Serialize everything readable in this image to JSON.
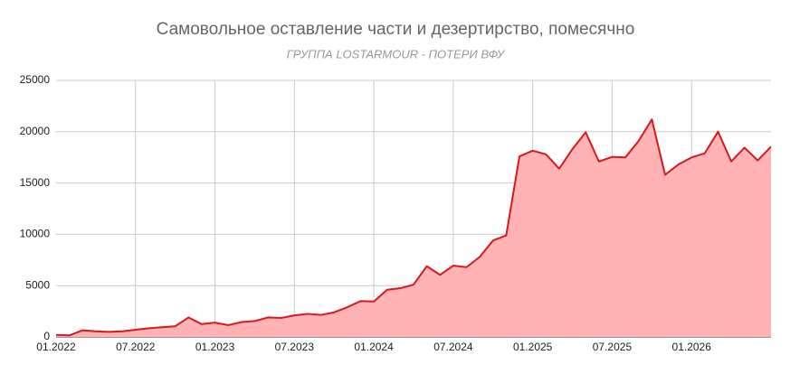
{
  "chart_data": {
    "type": "area",
    "title": "Самовольное оставление части и дезертирство, помесячно",
    "subtitle": "ГРУППА LOSTARMOUR - ПОТЕРИ ВФУ",
    "categories": [
      "01.2022",
      null,
      null,
      null,
      null,
      null,
      "07.2022",
      null,
      null,
      null,
      null,
      null,
      "01.2023",
      null,
      null,
      null,
      null,
      null,
      "07.2023",
      null,
      null,
      null,
      null,
      null,
      "01.2024",
      null,
      null,
      null,
      null,
      null,
      "07.2024",
      null,
      null,
      null,
      null,
      null,
      "01.2025",
      null,
      null,
      null,
      null,
      null,
      "07.2025",
      null,
      null,
      null,
      null,
      null,
      "01.2026",
      null,
      null,
      null,
      null,
      null,
      null
    ],
    "series": [
      {
        "color": "#d7191c",
        "fill": "#ffb3b5",
        "values": [
          200,
          150,
          650,
          550,
          500,
          550,
          700,
          850,
          950,
          1050,
          1900,
          1250,
          1400,
          1150,
          1450,
          1550,
          1900,
          1850,
          2100,
          2250,
          2150,
          2400,
          2900,
          3500,
          3450,
          4600,
          4750,
          5100,
          6900,
          6050,
          6950,
          6800,
          7800,
          9400,
          9900,
          17600,
          18150,
          17800,
          16400,
          18300,
          19950,
          17100,
          17550,
          17500,
          19100,
          21200,
          15800,
          16800,
          17500,
          17900,
          20000,
          17100,
          18450,
          17200,
          18550
        ]
      }
    ],
    "ylim": [
      0,
      25000
    ],
    "yticks": [
      0,
      5000,
      10000,
      15000,
      20000,
      25000
    ],
    "grid": true
  }
}
